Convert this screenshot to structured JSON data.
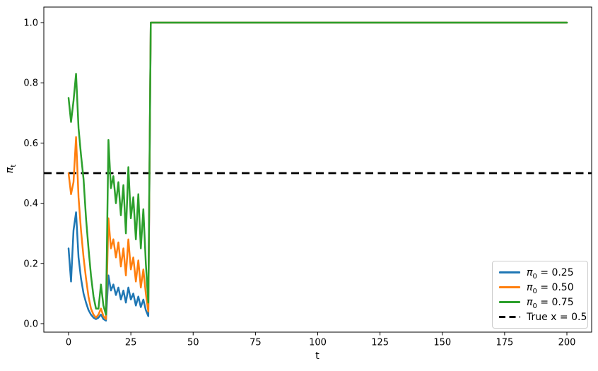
{
  "figure": {
    "background": "#ffffff"
  },
  "axes": {
    "xlabel": "t",
    "ylabel_symbol": "π",
    "ylabel_sub": "t",
    "x_tick_labels": [
      "0",
      "25",
      "50",
      "75",
      "100",
      "125",
      "150",
      "175",
      "200"
    ],
    "y_tick_labels": [
      "0.0",
      "0.2",
      "0.4",
      "0.6",
      "0.8",
      "1.0"
    ]
  },
  "legend": {
    "items": [
      {
        "sym": "π",
        "sub": "0",
        "rest": " = 0.25",
        "color": "#1f77b4",
        "dash": false
      },
      {
        "sym": "π",
        "sub": "0",
        "rest": " = 0.50",
        "color": "#ff7f0e",
        "dash": false
      },
      {
        "sym": "π",
        "sub": "0",
        "rest": " = 0.75",
        "color": "#2ca02c",
        "dash": false
      },
      {
        "sym": "",
        "sub": "",
        "rest": "True x = 0.5",
        "color": "#000000",
        "dash": true
      }
    ]
  },
  "chart_data": {
    "type": "line",
    "title": "",
    "xlabel": "t",
    "ylabel": "π_t",
    "xlim": [
      -10,
      210
    ],
    "ylim": [
      -0.03,
      1.05
    ],
    "grid": false,
    "legend_position": "lower right",
    "x_ticks": [
      0,
      25,
      50,
      75,
      100,
      125,
      150,
      175,
      200
    ],
    "y_ticks": [
      0.0,
      0.2,
      0.4,
      0.6,
      0.8,
      1.0
    ],
    "x": [
      0,
      1,
      2,
      3,
      4,
      5,
      6,
      7,
      8,
      9,
      10,
      11,
      12,
      13,
      14,
      15,
      16,
      17,
      18,
      19,
      20,
      21,
      22,
      23,
      24,
      25,
      26,
      27,
      28,
      29,
      30,
      31,
      32,
      33,
      200
    ],
    "series": [
      {
        "id": "pi0-025",
        "name": "π0 = 0.25",
        "color": "#1f77b4",
        "values": [
          0.25,
          0.14,
          0.31,
          0.37,
          0.22,
          0.15,
          0.1,
          0.07,
          0.045,
          0.03,
          0.02,
          0.015,
          0.02,
          0.03,
          0.015,
          0.01,
          0.16,
          0.11,
          0.13,
          0.095,
          0.12,
          0.08,
          0.11,
          0.07,
          0.12,
          0.08,
          0.1,
          0.06,
          0.09,
          0.055,
          0.08,
          0.045,
          0.025,
          1.0,
          1.0
        ]
      },
      {
        "id": "pi0-050",
        "name": "π0 = 0.50",
        "color": "#ff7f0e",
        "values": [
          0.5,
          0.43,
          0.47,
          0.62,
          0.42,
          0.31,
          0.22,
          0.15,
          0.09,
          0.05,
          0.03,
          0.02,
          0.03,
          0.05,
          0.025,
          0.015,
          0.35,
          0.25,
          0.28,
          0.22,
          0.27,
          0.19,
          0.25,
          0.16,
          0.28,
          0.18,
          0.22,
          0.14,
          0.21,
          0.12,
          0.18,
          0.1,
          0.04,
          1.0,
          1.0
        ]
      },
      {
        "id": "pi0-075",
        "name": "π0 = 0.75",
        "color": "#2ca02c",
        "values": [
          0.75,
          0.67,
          0.74,
          0.83,
          0.65,
          0.56,
          0.48,
          0.35,
          0.25,
          0.16,
          0.09,
          0.05,
          0.05,
          0.13,
          0.06,
          0.03,
          0.61,
          0.45,
          0.49,
          0.4,
          0.47,
          0.36,
          0.46,
          0.3,
          0.52,
          0.35,
          0.42,
          0.28,
          0.43,
          0.25,
          0.38,
          0.2,
          0.07,
          1.0,
          1.0
        ]
      }
    ],
    "reference_line": {
      "name": "True x = 0.5",
      "y": 0.5,
      "color": "#000000",
      "style": "dashed"
    },
    "note": "All three series jump to 1.0 near t=33 and remain constant at 1.0 through t=200"
  }
}
